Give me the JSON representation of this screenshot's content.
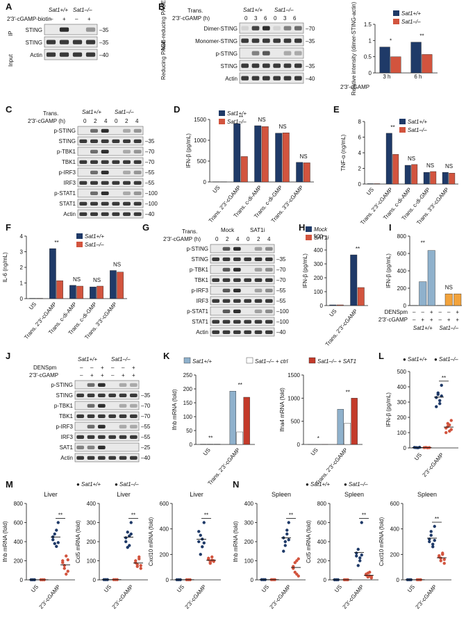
{
  "colors": {
    "wt": "#1f3a68",
    "ko": "#d2543e",
    "wt_light": "#8fb1cc",
    "ctrl": "#ffffff",
    "sat1": "#c33a2a",
    "densp": "#f2a33c",
    "blot_bg": "#e9e9e9",
    "band": "#1a1a1a"
  },
  "panels": {
    "A": {
      "label": "A",
      "ip_label": "IP",
      "input_label": "Input",
      "genotypes": [
        "Sat1+/+",
        "Sat1–/–"
      ],
      "treat_label": "2′3′-cGAMP-biotin",
      "lanes": [
        "–",
        "+",
        "–",
        "+"
      ],
      "rows": [
        {
          "name": "STING",
          "mw": "35"
        },
        {
          "name": "STING",
          "mw": "35"
        },
        {
          "name": "Actin",
          "mw": "40"
        }
      ]
    },
    "B": {
      "label": "B",
      "trans": "Trans.",
      "time_label": "2′3′-cGAMP (h)",
      "genotypes": [
        "Sat1+/+",
        "Sat1–/–"
      ],
      "times": [
        "0",
        "3",
        "6",
        "0",
        "3",
        "6"
      ],
      "nonred": "Non-reducing PAGE",
      "red": "Reducing PAGE",
      "rows": [
        {
          "name": "Dimer-STING",
          "mw": "70"
        },
        {
          "name": "Monomer-STING",
          "mw": "35"
        },
        {
          "name": "p-STING",
          "mw": ""
        },
        {
          "name": "STING",
          "mw": "35"
        },
        {
          "name": "Actin",
          "mw": "40"
        }
      ]
    },
    "C": {
      "label": "C",
      "trans": "Trans.",
      "time_label": "2′3′-cGAMP (h)",
      "genotypes": [
        "Sat1+/+",
        "Sat1–/–"
      ],
      "times": [
        "0",
        "2",
        "4",
        "0",
        "2",
        "4"
      ],
      "rows": [
        {
          "name": "p-STING",
          "mw": ""
        },
        {
          "name": "STING",
          "mw": "35"
        },
        {
          "name": "p-TBK1",
          "mw": "70"
        },
        {
          "name": "TBK1",
          "mw": "70"
        },
        {
          "name": "p-IRF3",
          "mw": "55"
        },
        {
          "name": "IRF3",
          "mw": "55"
        },
        {
          "name": "p-STAT1",
          "mw": "100"
        },
        {
          "name": "STAT1",
          "mw": "100"
        },
        {
          "name": "Actin",
          "mw": "40"
        }
      ]
    },
    "G": {
      "label": "G",
      "trans": "Trans.",
      "time_label": "2′3′-cGAMP (h)",
      "groups": [
        "Mock",
        "SAT1i"
      ],
      "times": [
        "0",
        "2",
        "4",
        "0",
        "2",
        "4"
      ],
      "rows": [
        {
          "name": "p-STING",
          "mw": ""
        },
        {
          "name": "STING",
          "mw": "35"
        },
        {
          "name": "p-TBK1",
          "mw": "70"
        },
        {
          "name": "TBK1",
          "mw": "70"
        },
        {
          "name": "p-IRF3",
          "mw": "55"
        },
        {
          "name": "IRF3",
          "mw": "55"
        },
        {
          "name": "p-STAT1",
          "mw": "100"
        },
        {
          "name": "STAT1",
          "mw": "100"
        },
        {
          "name": "Actin",
          "mw": "40"
        }
      ]
    },
    "J": {
      "label": "J",
      "genotypes": [
        "Sat1+/+",
        "Sat1–/–"
      ],
      "treat1": "DENSpm",
      "treat2": "2′3′-cGAMP",
      "lanes1": [
        "–",
        "–",
        "+",
        "–",
        "–",
        "+"
      ],
      "lanes2": [
        "–",
        "+",
        "+",
        "–",
        "+",
        "+"
      ],
      "rows": [
        {
          "name": "p-STING",
          "mw": ""
        },
        {
          "name": "STING",
          "mw": "35"
        },
        {
          "name": "p-TBK1",
          "mw": "70"
        },
        {
          "name": "TBK1",
          "mw": "70"
        },
        {
          "name": "p-IRF3",
          "mw": "55"
        },
        {
          "name": "IRF3",
          "mw": "55"
        },
        {
          "name": "SAT1",
          "mw": "25"
        },
        {
          "name": "Actin",
          "mw": "40"
        }
      ]
    },
    "D": {
      "label": "D"
    },
    "E": {
      "label": "E"
    },
    "F": {
      "label": "F"
    },
    "H": {
      "label": "H"
    },
    "I": {
      "label": "I"
    },
    "K": {
      "label": "K"
    },
    "L": {
      "label": "L"
    },
    "M": {
      "label": "M"
    },
    "N": {
      "label": "N"
    }
  },
  "chart_data": [
    {
      "id": "B",
      "type": "bar",
      "categories": [
        "3 h",
        "6 h"
      ],
      "xlabel": "2′3′-cGAMP",
      "ylabel": "Relative intensity (dimer-STING-actin)",
      "ylim": [
        0,
        1.5
      ],
      "yticks": [
        0,
        0.5,
        1.0,
        1.5
      ],
      "series": [
        {
          "name": "Sat1+/+",
          "values": [
            0.8,
            0.95
          ]
        },
        {
          "name": "Sat1–/–",
          "values": [
            0.5,
            0.57
          ]
        }
      ],
      "sig": [
        "*",
        "**"
      ]
    },
    {
      "id": "D",
      "type": "bar",
      "categories": [
        "US",
        "Trans. 2′3′-cGAMP",
        "Trans. c-di-AMP",
        "Trans. c-di-GMP",
        "Trans. 3′3′-cGAMP"
      ],
      "ylabel": "IFN-β (pg/mL)",
      "ylim": [
        0,
        1500
      ],
      "yticks": [
        0,
        500,
        1000,
        1500
      ],
      "series": [
        {
          "name": "Sat1+/+",
          "values": [
            5,
            1400,
            1350,
            1170,
            470
          ]
        },
        {
          "name": "Sat1–/–",
          "values": [
            5,
            610,
            1330,
            1180,
            460
          ]
        }
      ],
      "sig": [
        "",
        "**",
        "NS",
        "NS",
        "NS"
      ]
    },
    {
      "id": "E",
      "type": "bar",
      "categories": [
        "US",
        "Trans. 2′3′-cGAMP",
        "Trans. c-di-AMP",
        "Trans. c-di-GMP",
        "Trans. 3′3′-cGAMP"
      ],
      "ylabel": "TNF-α (ng/mL)",
      "ylim": [
        0,
        8
      ],
      "yticks": [
        0,
        2,
        4,
        6,
        8
      ],
      "series": [
        {
          "name": "Sat1+/+",
          "values": [
            0.05,
            6.5,
            2.4,
            1.5,
            1.5
          ]
        },
        {
          "name": "Sat1–/–",
          "values": [
            0.05,
            3.8,
            2.5,
            1.6,
            1.4
          ]
        }
      ],
      "sig": [
        "",
        "**",
        "NS",
        "NS",
        "NS"
      ]
    },
    {
      "id": "F",
      "type": "bar",
      "categories": [
        "US",
        "Trans. 2′3′-cGAMP",
        "Trans. c-di-AMP",
        "Trans. c-di-GMP",
        "Trans. 3′3′-cGAMP"
      ],
      "ylabel": "IL-6 (ng/mL)",
      "ylim": [
        0,
        4
      ],
      "yticks": [
        0,
        1,
        2,
        3,
        4
      ],
      "series": [
        {
          "name": "Sat1+/+",
          "values": [
            0.02,
            3.2,
            0.85,
            0.75,
            1.8
          ]
        },
        {
          "name": "Sat1–/–",
          "values": [
            0.02,
            1.15,
            0.8,
            0.8,
            1.7
          ]
        }
      ],
      "sig": [
        "",
        "**",
        "NS",
        "NS",
        "NS"
      ]
    },
    {
      "id": "H",
      "type": "bar",
      "categories": [
        "US",
        "Trans. 2′3′-cGAMP"
      ],
      "ylabel": "IFN-β (pg/mL)",
      "ylim": [
        0,
        500
      ],
      "yticks": [
        0,
        100,
        200,
        300,
        400,
        500
      ],
      "series": [
        {
          "name": "Mock",
          "values": [
            5,
            365
          ]
        },
        {
          "name": "SAT1i",
          "values": [
            5,
            130
          ]
        }
      ],
      "sig": [
        "",
        "**"
      ]
    },
    {
      "id": "I",
      "type": "bar",
      "ylabel": "IFN-β (pg/mL)",
      "ylim": [
        0,
        800
      ],
      "yticks": [
        0,
        200,
        400,
        600,
        800
      ],
      "groups": [
        "Sat1+/+",
        "Sat1–/–"
      ],
      "densp": [
        "–",
        "–",
        "+",
        "–",
        "–",
        "+"
      ],
      "cgamp": [
        "–",
        "+",
        "+",
        "–",
        "+",
        "+"
      ],
      "treat1": "DENSpm",
      "treat2": "2′3′-cGAMP",
      "values": [
        2,
        275,
        635,
        2,
        135,
        135
      ],
      "sig": [
        "**",
        "NS"
      ]
    },
    {
      "id": "K1",
      "type": "bar",
      "categories": [
        "US",
        "Trans. 2′3′-cGAMP"
      ],
      "ylabel": "Ifnb mRNA (fold)",
      "ylim": [
        0,
        250
      ],
      "yticks": [
        0,
        50,
        100,
        150,
        200,
        250
      ],
      "series": [
        {
          "name": "Sat1+/+",
          "values": [
            1,
            192
          ]
        },
        {
          "name": "Sat1–/– + ctrl",
          "values": [
            1,
            45
          ]
        },
        {
          "name": "Sat1–/– + SAT1",
          "values": [
            1,
            170
          ]
        }
      ],
      "sig": [
        "**",
        "**"
      ]
    },
    {
      "id": "K2",
      "type": "bar",
      "categories": [
        "US",
        "Trans. 2′3′-cGAMP"
      ],
      "ylabel": "Ifna4 mRNA (fold)",
      "ylim": [
        0,
        1500
      ],
      "yticks": [
        0,
        500,
        1000,
        1500
      ],
      "series": [
        {
          "name": "Sat1+/+",
          "values": [
            1,
            760
          ]
        },
        {
          "name": "Sat1–/– + ctrl",
          "values": [
            1,
            460
          ]
        },
        {
          "name": "Sat1–/– + SAT1",
          "values": [
            1,
            1000
          ]
        }
      ],
      "sig": [
        "*",
        "**"
      ]
    },
    {
      "id": "L",
      "type": "scatter",
      "categories": [
        "US",
        "2′3′-cGAMP"
      ],
      "ylabel": "IFN-β (pg/mL)",
      "ylim": [
        0,
        500
      ],
      "yticks": [
        0,
        100,
        200,
        300,
        400,
        500
      ],
      "series": [
        {
          "name": "Sat1+/+",
          "points": [
            [
              3,
              2,
              1,
              4
            ],
            [
              330,
              360,
              290,
              410,
              270,
              350,
              310,
              340
            ]
          ]
        },
        {
          "name": "Sat1–/–",
          "points": [
            [
              2,
              3,
              1,
              2
            ],
            [
              130,
              160,
              110,
              180,
              100,
              140,
              150,
              120
            ]
          ]
        }
      ],
      "sig": "**"
    },
    {
      "id": "M1",
      "type": "scatter",
      "tissue": "Liver",
      "ylabel": "Ifnb mRNA (fold)",
      "ylim": [
        0,
        800
      ],
      "yticks": [
        0,
        200,
        400,
        600,
        800
      ],
      "series": [
        {
          "name": "Sat1+/+",
          "points": [
            [
              1,
              1,
              1
            ],
            [
              450,
              380,
              520,
              600,
              420,
              480,
              350,
              390
            ]
          ]
        },
        {
          "name": "Sat1–/–",
          "points": [
            [
              1,
              1,
              1
            ],
            [
              180,
              120,
              250,
              90,
              200,
              150,
              60,
              210
            ]
          ]
        }
      ],
      "sig": "**"
    },
    {
      "id": "M2",
      "type": "scatter",
      "tissue": "Liver",
      "ylabel": "Ccl5 mRNA (fold)",
      "ylim": [
        0,
        400
      ],
      "yticks": [
        0,
        100,
        200,
        300,
        400
      ],
      "series": [
        {
          "name": "Sat1+/+",
          "points": [
            [
              1,
              1,
              1
            ],
            [
              200,
              250,
              180,
              300,
              220,
              170,
              230,
              240
            ]
          ]
        },
        {
          "name": "Sat1–/–",
          "points": [
            [
              1,
              1,
              1
            ],
            [
              90,
              70,
              110,
              60,
              100,
              80,
              120,
              75
            ]
          ]
        }
      ],
      "sig": "**"
    },
    {
      "id": "M3",
      "type": "scatter",
      "tissue": "Liver",
      "ylabel": "Cxcl10 mRNA (fold)",
      "ylim": [
        0,
        600
      ],
      "yticks": [
        0,
        200,
        400,
        600
      ],
      "series": [
        {
          "name": "Sat1+/+",
          "points": [
            [
              1,
              1,
              1
            ],
            [
              300,
              350,
              260,
              450,
              380,
              200,
              320,
              290
            ]
          ]
        },
        {
          "name": "Sat1–/–",
          "points": [
            [
              1,
              1,
              1
            ],
            [
              160,
              140,
              180,
              150,
              170,
              130,
              155,
              145
            ]
          ]
        }
      ],
      "sig": "**"
    },
    {
      "id": "N1",
      "type": "scatter",
      "tissue": "Spleen",
      "ylabel": "Ifnb mRNA (fold)",
      "ylim": [
        0,
        400
      ],
      "yticks": [
        0,
        100,
        200,
        300,
        400
      ],
      "series": [
        {
          "name": "Sat1+/+",
          "points": [
            [
              1,
              1,
              1
            ],
            [
              220,
              180,
              260,
              300,
              150,
              200,
              240,
              210
            ]
          ]
        },
        {
          "name": "Sat1–/–",
          "points": [
            [
              1,
              1,
              1
            ],
            [
              70,
              40,
              100,
              20,
              60,
              90,
              30,
              110
            ]
          ]
        }
      ],
      "sig": "**"
    },
    {
      "id": "N2",
      "type": "scatter",
      "tissue": "Spleen",
      "ylabel": "Ccl5 mRNA (fold)",
      "ylim": [
        0,
        800
      ],
      "yticks": [
        0,
        200,
        400,
        600,
        800
      ],
      "series": [
        {
          "name": "Sat1+/+",
          "points": [
            [
              1,
              1,
              1
            ],
            [
              250,
              320,
              200,
              600,
              280,
              150,
              230,
              260
            ]
          ]
        },
        {
          "name": "Sat1–/–",
          "points": [
            [
              1,
              1,
              1
            ],
            [
              60,
              30,
              80,
              20,
              50,
              70,
              40,
              35
            ]
          ]
        }
      ],
      "sig": "**"
    },
    {
      "id": "N3",
      "type": "scatter",
      "tissue": "Spleen",
      "ylabel": "Cxcl10 mRNA (fold)",
      "ylim": [
        0,
        600
      ],
      "yticks": [
        0,
        200,
        400,
        600
      ],
      "series": [
        {
          "name": "Sat1+/+",
          "points": [
            [
              1,
              1,
              1
            ],
            [
              320,
              380,
              280,
              420,
              300,
              350,
              260,
              310
            ]
          ]
        },
        {
          "name": "Sat1–/–",
          "points": [
            [
              1,
              1,
              1
            ],
            [
              180,
              150,
              210,
              130,
              190,
              170,
              200,
              160
            ]
          ]
        }
      ],
      "sig": "**"
    }
  ]
}
